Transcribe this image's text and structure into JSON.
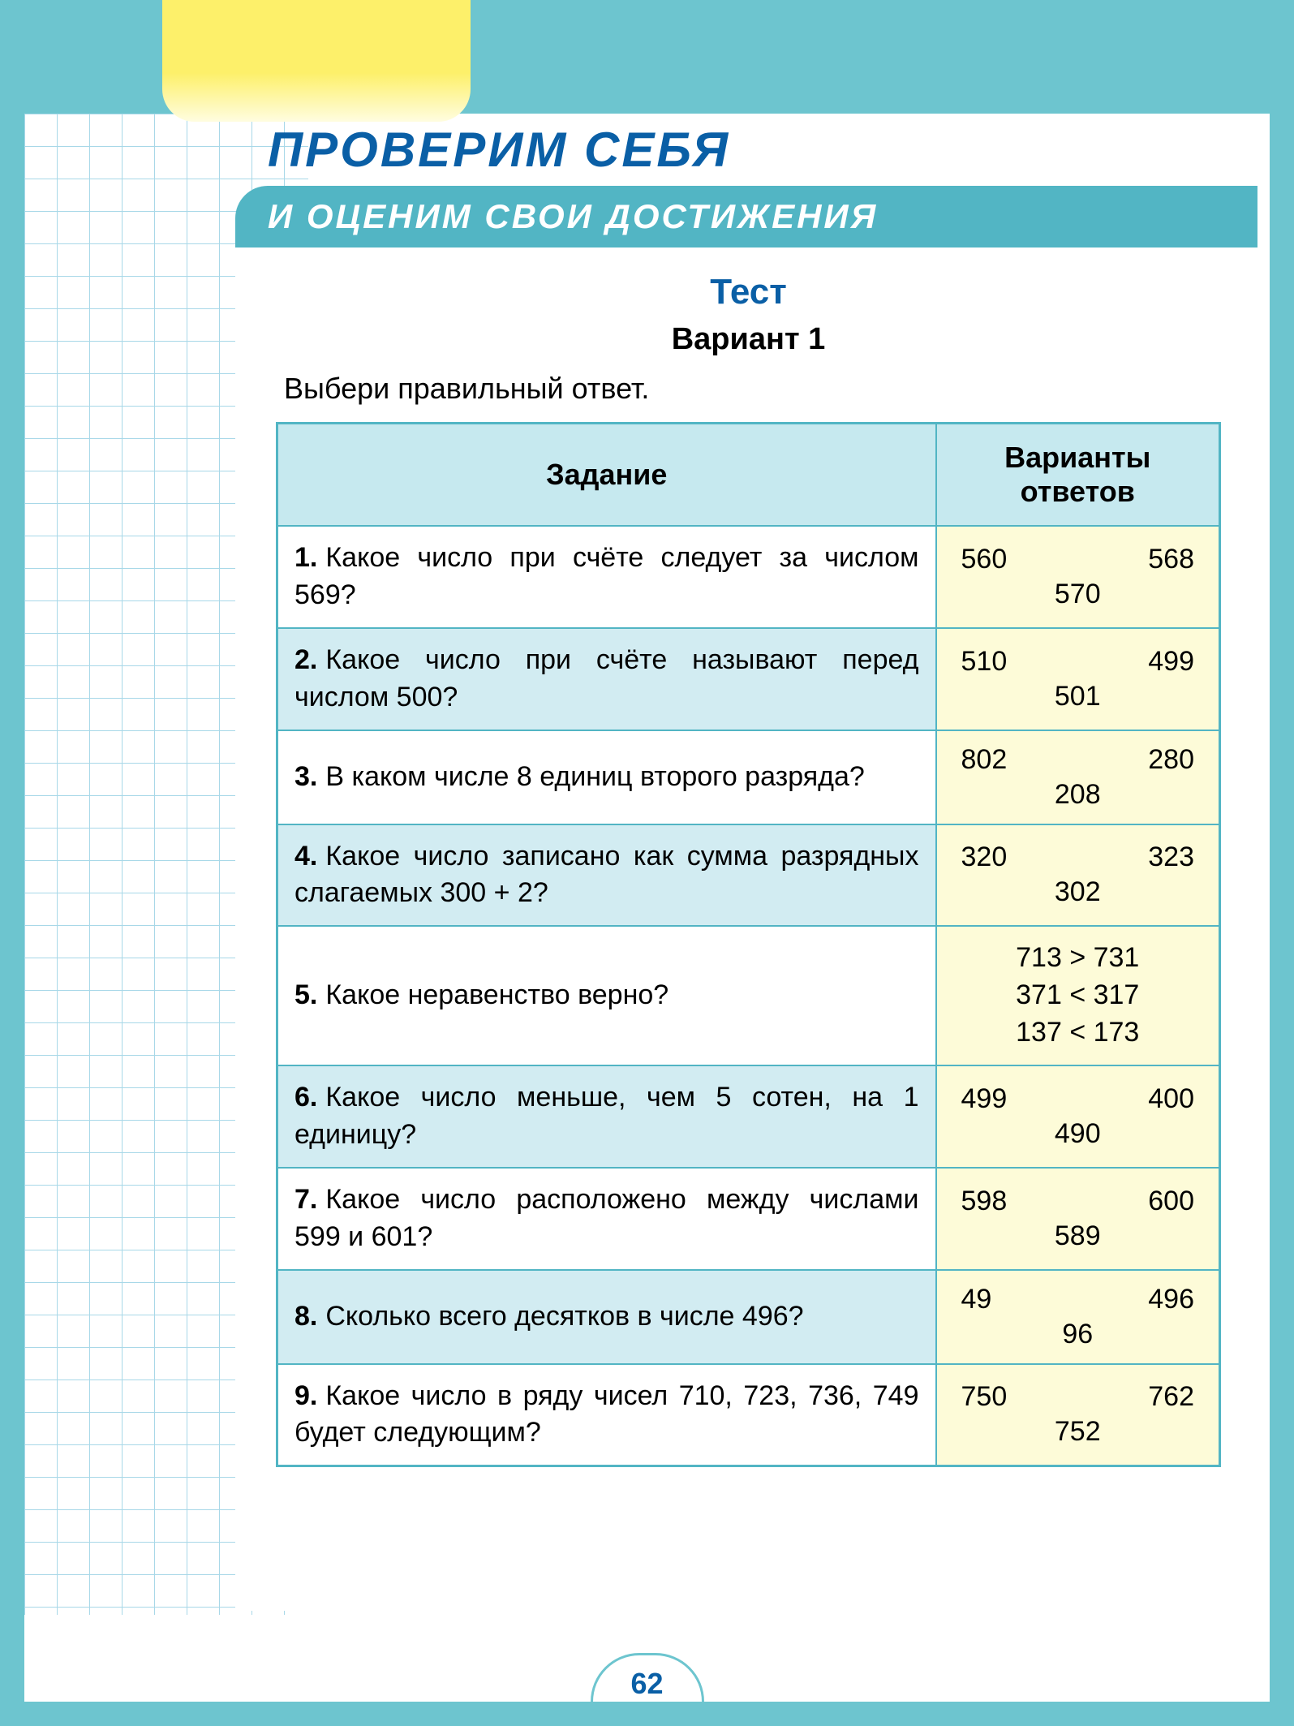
{
  "page": {
    "title_main": "ПРОВЕРИМ СЕБЯ",
    "title_sub": "И ОЦЕНИМ СВОИ ДОСТИЖЕНИЯ",
    "test_label": "Тест",
    "variant_label": "Вариант  1",
    "instruction": "Выбери  правильный  ответ.",
    "page_number": "62",
    "colors": {
      "frame": "#6dc5cf",
      "accent_blue": "#0a5fa6",
      "sub_band": "#52b5c4",
      "grid_line": "#a8d8e8",
      "header_row_bg": "#c6e9ef",
      "alt_row_bg": "#d2ecf2",
      "answer_bg": "#fdfbd8",
      "yellow_tab_top": "#fdf06a",
      "yellow_tab_bottom": "#fffde0"
    },
    "font": {
      "title_main_size": 60,
      "title_sub_size": 42,
      "test_label_size": 44,
      "variant_label_size": 38,
      "instruction_size": 36,
      "table_header_size": 36,
      "table_cell_size": 34,
      "page_num_size": 36
    }
  },
  "table": {
    "header_task": "Задание",
    "header_answers": "Варианты ответов",
    "col_widths": {
      "task": "auto",
      "answers": 350
    },
    "rows": [
      {
        "num": "1.",
        "question": "Какое число при счёте следует за числом 569?",
        "answers": {
          "type": "tri",
          "top_left": "560",
          "top_right": "568",
          "bottom": "570"
        },
        "alt": false
      },
      {
        "num": "2.",
        "question": "Какое число при счёте называют перед числом 500?",
        "answers": {
          "type": "tri",
          "top_left": "510",
          "top_right": "499",
          "bottom": "501"
        },
        "alt": true
      },
      {
        "num": "3.",
        "question": "В каком числе 8 единиц второго разряда?",
        "answers": {
          "type": "tri",
          "top_left": "802",
          "top_right": "280",
          "bottom": "208"
        },
        "alt": false
      },
      {
        "num": "4.",
        "question": "Какое число записано как сумма разрядных слагаемых 300 + 2?",
        "answers": {
          "type": "tri",
          "top_left": "320",
          "top_right": "323",
          "bottom": "302"
        },
        "alt": true
      },
      {
        "num": "5.",
        "question": "Какое неравенство верно?",
        "answers": {
          "type": "lines",
          "lines": [
            "713  >  731",
            "371  <  317",
            "137  <  173"
          ]
        },
        "alt": false
      },
      {
        "num": "6.",
        "question": "Какое число меньше, чем 5 сотен, на 1 единицу?",
        "answers": {
          "type": "tri",
          "top_left": "499",
          "top_right": "400",
          "bottom": "490"
        },
        "alt": true
      },
      {
        "num": "7.",
        "question": "Какое число расположено между числами 599 и 601?",
        "answers": {
          "type": "tri",
          "top_left": "598",
          "top_right": "600",
          "bottom": "589"
        },
        "alt": false
      },
      {
        "num": "8.",
        "question": "Сколько всего десятков в числе 496?",
        "answers": {
          "type": "tri",
          "top_left": "49",
          "top_right": "496",
          "bottom": "96"
        },
        "alt": true
      },
      {
        "num": "9.",
        "question": "Какое число в ряду чисел 710, 723, 736, 749 будет следующим?",
        "answers": {
          "type": "tri",
          "top_left": "750",
          "top_right": "762",
          "bottom": "752"
        },
        "alt": false
      }
    ]
  }
}
